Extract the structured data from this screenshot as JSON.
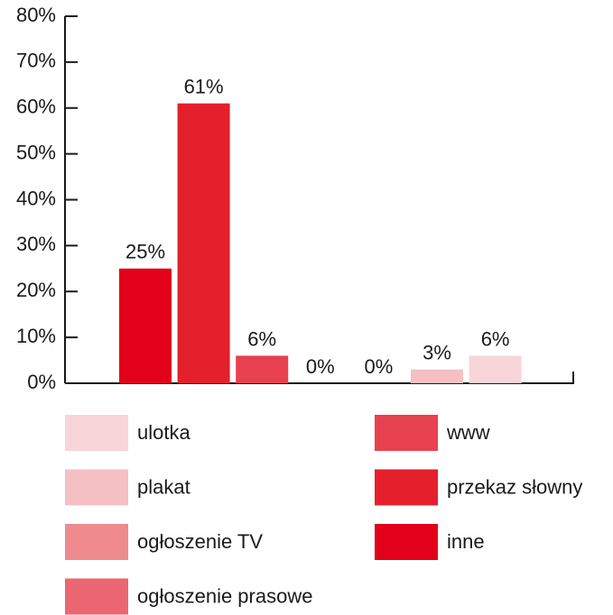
{
  "chart_data": {
    "type": "bar",
    "series": [
      {
        "name": "ulotka",
        "color": "#f8d5d9",
        "values": [
          6
        ],
        "value_labels": [
          "6%"
        ]
      },
      {
        "name": "plakat",
        "color": "#f4c0c4",
        "values": [
          3
        ],
        "value_labels": [
          "3%"
        ]
      },
      {
        "name": "ogłoszenie TV",
        "color": "#ef8a8f",
        "values": [
          0
        ],
        "value_labels": [
          "0%"
        ]
      },
      {
        "name": "ogłoszenie prasowe",
        "color": "#eb6671",
        "values": [
          0
        ],
        "value_labels": [
          "0%"
        ]
      },
      {
        "name": "www",
        "color": "#e8414f",
        "values": [
          6
        ],
        "value_labels": [
          "6%"
        ]
      },
      {
        "name": "przekaz słowny",
        "color": "#e3202b",
        "values": [
          61
        ],
        "value_labels": [
          "61%"
        ]
      },
      {
        "name": "inne",
        "color": "#e2001a",
        "values": [
          25
        ],
        "value_labels": [
          "25%"
        ]
      }
    ],
    "ylim": [
      0,
      80
    ],
    "yticks": [
      {
        "value": 0,
        "label": "0%"
      },
      {
        "value": 10,
        "label": "10%"
      },
      {
        "value": 20,
        "label": "20%"
      },
      {
        "value": 30,
        "label": "30%"
      },
      {
        "value": 40,
        "label": "40%"
      },
      {
        "value": 50,
        "label": "50%"
      },
      {
        "value": 60,
        "label": "60%"
      },
      {
        "value": 70,
        "label": "70%"
      },
      {
        "value": 80,
        "label": "80%"
      }
    ]
  }
}
